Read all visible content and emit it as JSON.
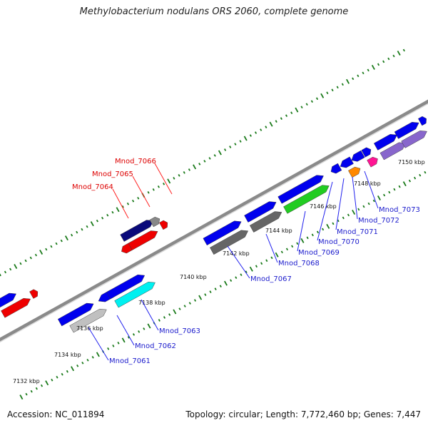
{
  "title": "Methylobacterium nodulans ORS 2060, complete genome",
  "footer": {
    "accession": "Accession: NC_011894",
    "stats": "Topology: circular; Length: 7,772,460 bp; Genes: 7,447"
  },
  "colors": {
    "backbone": "#8a8a8a",
    "tick": "#1a7a1a",
    "label_upper": "#dd0000",
    "label_lower": "#1a1acc",
    "leader_upper": "#ff2222",
    "leader_lower": "#2222ee"
  },
  "scale_labels": [
    "7132 kbp",
    "7134 kbp",
    "7136 kbp",
    "7138 kbp",
    "7140 kbp",
    "7142 kbp",
    "7144 kbp",
    "7146 kbp",
    "7148 kbp",
    "7150 kbp"
  ],
  "genes_upper": [
    {
      "label": "Mnod_7064"
    },
    {
      "label": "Mnod_7065"
    },
    {
      "label": "Mnod_7066"
    }
  ],
  "genes_lower": [
    {
      "label": "Mnod_7061"
    },
    {
      "label": "Mnod_7062"
    },
    {
      "label": "Mnod_7063"
    },
    {
      "label": "Mnod_7067"
    },
    {
      "label": "Mnod_7068"
    },
    {
      "label": "Mnod_7069"
    },
    {
      "label": "Mnod_7070"
    },
    {
      "label": "Mnod_7071"
    },
    {
      "label": "Mnod_7072"
    },
    {
      "label": "Mnod_7073"
    }
  ]
}
